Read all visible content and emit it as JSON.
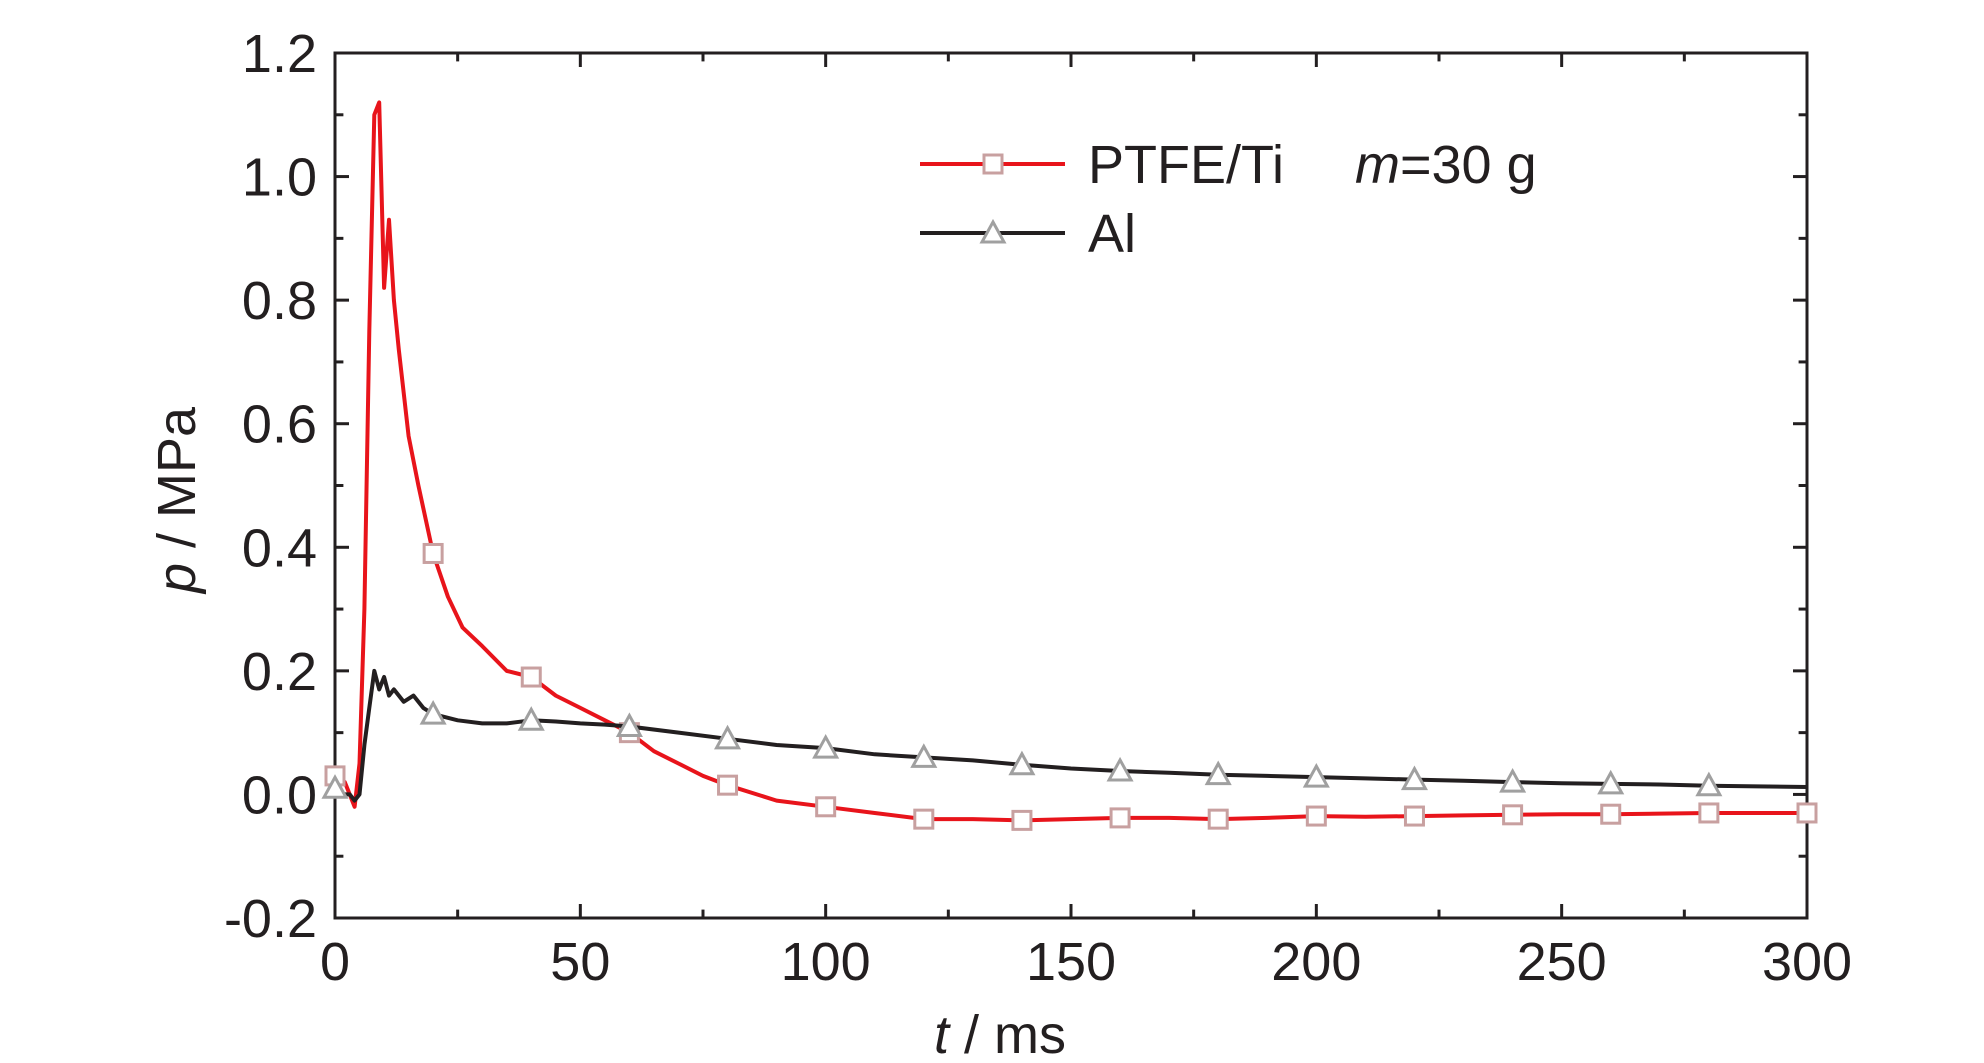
{
  "chart_data": {
    "type": "line",
    "title": "",
    "xlabel": {
      "symbol": "t",
      "unit": " / ms"
    },
    "ylabel": {
      "symbol": "p",
      "unit": " / MPa"
    },
    "xlim": [
      0,
      300
    ],
    "ylim": [
      -0.2,
      1.2
    ],
    "xticks": [
      0,
      50,
      100,
      150,
      200,
      250,
      300
    ],
    "yticks": [
      -0.2,
      0.0,
      0.2,
      0.4,
      0.6,
      0.8,
      1.0,
      1.2
    ],
    "xtick_labels": [
      "0",
      "50",
      "100",
      "150",
      "200",
      "250",
      "300"
    ],
    "ytick_labels": [
      "-0.2",
      "0.0",
      "0.2",
      "0.4",
      "0.6",
      "0.8",
      "1.0",
      "1.2"
    ],
    "grid": false,
    "legend_position": "top-right",
    "annotation": {
      "symbol": "m",
      "text": "=30 g"
    },
    "series": [
      {
        "name": "PTFE/Ti",
        "color": "#e8141b",
        "marker": "square",
        "x": [
          0,
          2,
          3,
          4,
          5,
          6,
          7,
          8,
          9,
          10,
          11,
          12,
          13,
          14,
          15,
          17,
          20,
          23,
          26,
          30,
          35,
          40,
          45,
          50,
          55,
          60,
          65,
          70,
          75,
          80,
          90,
          100,
          110,
          120,
          130,
          140,
          150,
          160,
          170,
          180,
          190,
          200,
          210,
          220,
          230,
          240,
          250,
          260,
          270,
          280,
          290,
          300
        ],
        "y": [
          0.03,
          0.02,
          0.0,
          -0.02,
          0.05,
          0.3,
          0.75,
          1.1,
          1.12,
          0.82,
          0.93,
          0.8,
          0.72,
          0.65,
          0.58,
          0.5,
          0.39,
          0.32,
          0.27,
          0.24,
          0.2,
          0.19,
          0.16,
          0.14,
          0.12,
          0.1,
          0.07,
          0.05,
          0.03,
          0.015,
          -0.01,
          -0.02,
          -0.03,
          -0.04,
          -0.04,
          -0.042,
          -0.04,
          -0.038,
          -0.038,
          -0.04,
          -0.038,
          -0.035,
          -0.036,
          -0.035,
          -0.034,
          -0.033,
          -0.032,
          -0.032,
          -0.031,
          -0.03,
          -0.03,
          -0.03
        ],
        "marker_x": [
          0,
          20,
          40,
          60,
          80,
          100,
          120,
          140,
          160,
          180,
          200,
          220,
          240,
          260,
          280,
          300
        ],
        "marker_y": [
          0.03,
          0.39,
          0.19,
          0.1,
          0.015,
          -0.02,
          -0.04,
          -0.042,
          -0.038,
          -0.04,
          -0.035,
          -0.035,
          -0.033,
          -0.032,
          -0.03,
          -0.03
        ]
      },
      {
        "name": "Al",
        "color": "#231f20",
        "marker": "triangle",
        "x": [
          0,
          2,
          3,
          4,
          5,
          6,
          7,
          8,
          9,
          10,
          11,
          12,
          14,
          16,
          18,
          20,
          25,
          30,
          35,
          40,
          45,
          50,
          55,
          60,
          70,
          80,
          90,
          100,
          110,
          120,
          130,
          140,
          150,
          160,
          170,
          180,
          190,
          200,
          210,
          220,
          230,
          240,
          250,
          260,
          270,
          280,
          290,
          300
        ],
        "y": [
          0.01,
          0.0,
          0.0,
          -0.01,
          0.0,
          0.08,
          0.14,
          0.2,
          0.17,
          0.19,
          0.16,
          0.17,
          0.15,
          0.16,
          0.14,
          0.13,
          0.12,
          0.115,
          0.115,
          0.12,
          0.118,
          0.115,
          0.113,
          0.11,
          0.1,
          0.09,
          0.08,
          0.075,
          0.065,
          0.06,
          0.055,
          0.048,
          0.042,
          0.038,
          0.035,
          0.032,
          0.03,
          0.028,
          0.026,
          0.024,
          0.022,
          0.02,
          0.018,
          0.017,
          0.016,
          0.014,
          0.013,
          0.012
        ],
        "marker_x": [
          0,
          20,
          40,
          60,
          80,
          100,
          120,
          140,
          160,
          180,
          200,
          220,
          240,
          260,
          280
        ],
        "marker_y": [
          0.01,
          0.13,
          0.12,
          0.11,
          0.09,
          0.075,
          0.06,
          0.048,
          0.038,
          0.032,
          0.028,
          0.024,
          0.02,
          0.017,
          0.014
        ]
      }
    ]
  }
}
